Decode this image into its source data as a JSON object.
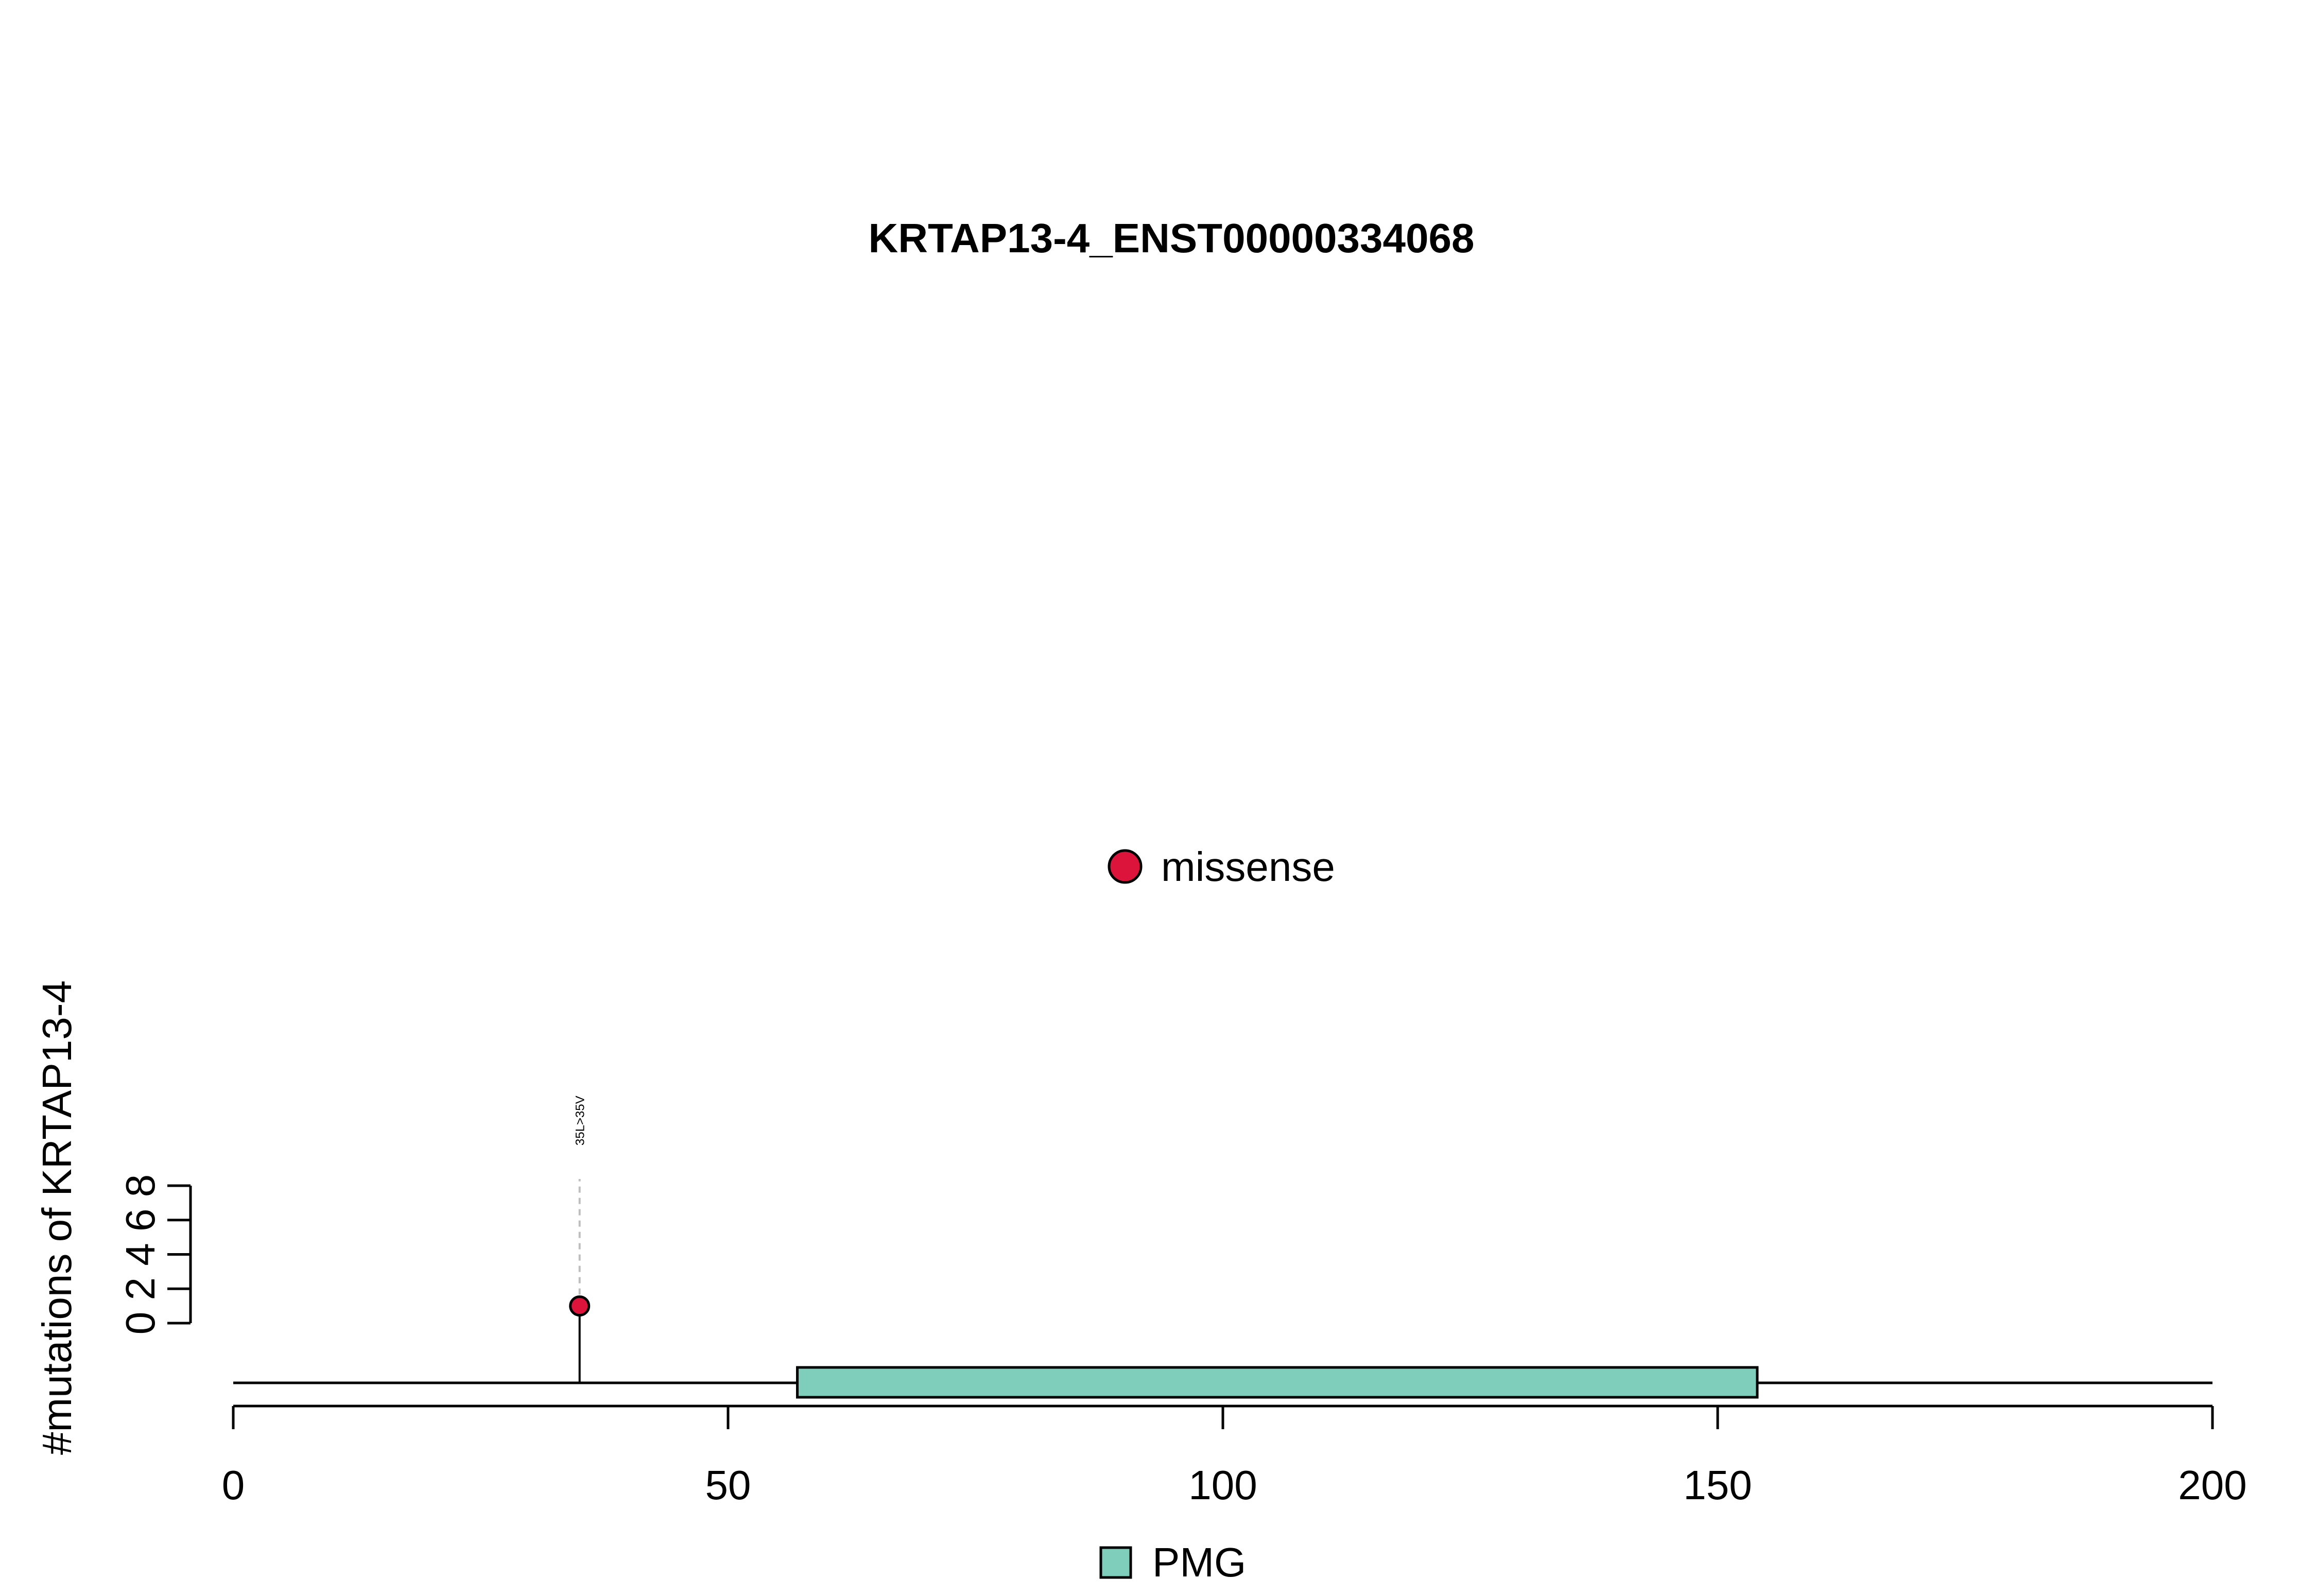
{
  "chart_data": {
    "type": "scatter",
    "subtype": "lollipop",
    "title": "KRTAP13-4_ENST00000334068",
    "xlabel": "",
    "ylabel": "#mutations of KRTAP13-4",
    "xlim": [
      0,
      200
    ],
    "ylim": [
      0,
      8
    ],
    "x_ticks": [
      0,
      50,
      100,
      150,
      200
    ],
    "y_ticks": [
      0,
      2,
      4,
      6,
      8
    ],
    "grid": false,
    "protein_length": 200,
    "mutations": [
      {
        "position": 35,
        "count": 1,
        "label": "35L>35V",
        "type": "missense"
      }
    ],
    "domains": [
      {
        "name": "PMG",
        "start": 57,
        "end": 154
      }
    ],
    "mutation_legend": [
      {
        "name": "missense"
      }
    ],
    "domain_legend": [
      {
        "name": "PMG"
      }
    ],
    "colors": {
      "missense": "#DC143C",
      "PMG": "#7FCDBB",
      "axis": "#000000",
      "stem_dashed": "#BEBEBE"
    }
  }
}
